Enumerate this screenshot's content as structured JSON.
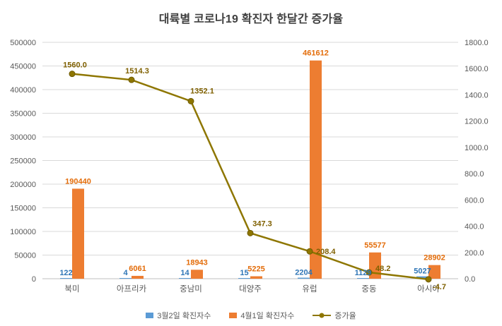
{
  "title": "대륙별 코로나19 확진자 한달간 증가율",
  "chart_data": {
    "type": "combo-bar-line",
    "categories": [
      "북미",
      "아프리카",
      "중남미",
      "대양주",
      "유럽",
      "중동",
      "아시아"
    ],
    "series": [
      {
        "name": "3월2일 확진자수",
        "type": "bar",
        "axis": "left",
        "color": "#5B9BD5",
        "label_color": "#2E75B6",
        "values": [
          122,
          4,
          14,
          15,
          2204,
          1129,
          5027
        ],
        "labels": [
          "122",
          "4",
          "14",
          "15",
          "2204",
          "1129",
          "5027"
        ]
      },
      {
        "name": "4월1일 확진자수",
        "type": "bar",
        "axis": "left",
        "color": "#ED7D31",
        "label_color": "#E36C09",
        "values": [
          190440,
          6061,
          18943,
          5225,
          461612,
          55577,
          28902
        ],
        "labels": [
          "190440",
          "6061",
          "18943",
          "5225",
          "461612",
          "55577",
          "28902"
        ]
      },
      {
        "name": "증가율",
        "type": "line",
        "axis": "right",
        "color": "#8E7600",
        "marker_stroke": "#6E5A00",
        "label_color": "#7F6000",
        "values": [
          1560.0,
          1514.3,
          1352.1,
          347.3,
          208.4,
          48.2,
          -4.7
        ],
        "labels": [
          "1560.0",
          "1514.3",
          "1352.1",
          "347.3",
          "208.4",
          "48.2",
          "-4.7"
        ]
      }
    ],
    "left_axis": {
      "min": 0,
      "max": 500000,
      "step": 50000,
      "tick_labels": [
        "0",
        "50000",
        "100000",
        "150000",
        "200000",
        "250000",
        "300000",
        "350000",
        "400000",
        "450000",
        "500000"
      ]
    },
    "right_axis": {
      "min": 0,
      "max": 1800,
      "step": 200,
      "tick_labels": [
        "0.0",
        "200.0",
        "400.0",
        "600.0",
        "800.0",
        "1000.0",
        "1200.0",
        "1400.0",
        "1600.0",
        "1800.0"
      ]
    },
    "grid": true,
    "legend_position": "bottom",
    "axis_text_color": "#595959",
    "gridline_color": "#D9D9D9",
    "axis_line_color": "#BFBFBF"
  }
}
